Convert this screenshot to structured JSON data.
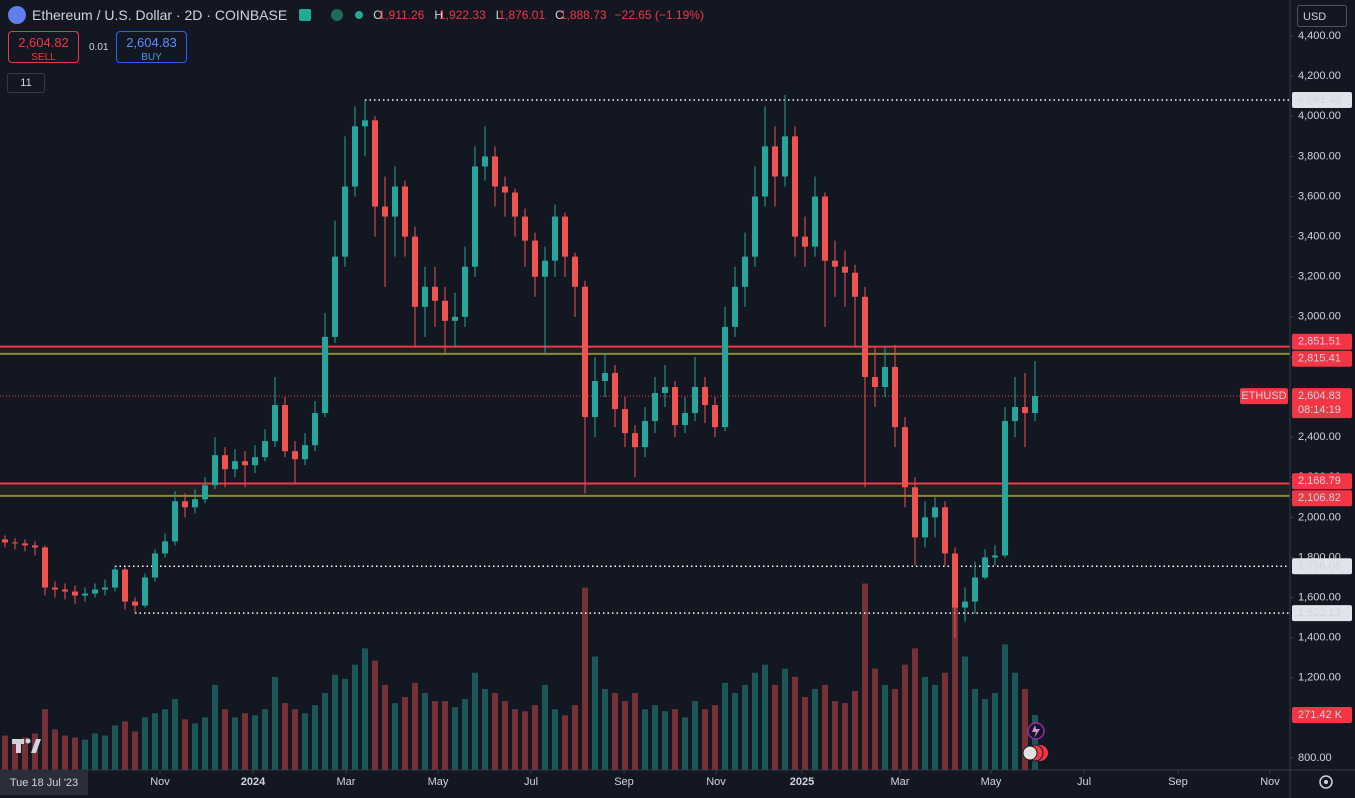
{
  "header": {
    "ohlc": [
      {
        "key": "O",
        "value": "1,911.26"
      },
      {
        "key": "H",
        "value": "1,922.33"
      },
      {
        "key": "L",
        "value": "1,876.01"
      },
      {
        "key": "C",
        "value": "1,888.73"
      }
    ],
    "change": "−22.65 (−1.19%)",
    "sell": {
      "price": "2,604.82",
      "label": "SELL"
    },
    "spread": "0.01",
    "buy": {
      "price": "2,604.83",
      "label": "BUY"
    },
    "indicators": "11",
    "currency": "USD",
    "cursor_date": "Tue 18 Jul '23"
  },
  "chart_data": {
    "type": "candlestick",
    "title": "Ethereum / U.S. Dollar · 2D · COINBASE",
    "up_color": "#26a69a",
    "down_color": "#ef5350",
    "grid": false,
    "xlim": [
      -0.5,
      128.5
    ],
    "xticks": [
      {
        "value": 15.5,
        "label": "Nov"
      },
      {
        "value": 24.8,
        "label": "2024"
      },
      {
        "value": 34.1,
        "label": "Mar"
      },
      {
        "value": 43.3,
        "label": "May"
      },
      {
        "value": 52.6,
        "label": "Jul"
      },
      {
        "value": 61.9,
        "label": "Sep"
      },
      {
        "value": 71.1,
        "label": "Nov"
      },
      {
        "value": 79.7,
        "label": "2025"
      },
      {
        "value": 89.5,
        "label": "Mar"
      },
      {
        "value": 98.6,
        "label": "May"
      },
      {
        "value": 107.9,
        "label": "Jul"
      },
      {
        "value": 117.3,
        "label": "Sep"
      },
      {
        "value": 126.5,
        "label": "Nov"
      }
    ],
    "ylim": [
      740,
      4580
    ],
    "yticks": [
      {
        "value": 800,
        "label": "800.00"
      },
      {
        "value": 1000,
        "label": "1,000.00"
      },
      {
        "value": 1200,
        "label": "1,200.00"
      },
      {
        "value": 1400,
        "label": "1,400.00"
      },
      {
        "value": 1600,
        "label": "1,600.00"
      },
      {
        "value": 1800,
        "label": "1,800.00"
      },
      {
        "value": 2000,
        "label": "2,000.00"
      },
      {
        "value": 2200,
        "label": "2,200.00"
      },
      {
        "value": 2400,
        "label": "2,400.00"
      },
      {
        "value": 2600,
        "label": "2,600.00"
      },
      {
        "value": 2800,
        "label": "2,800.00"
      },
      {
        "value": 3000,
        "label": "3,000.00"
      },
      {
        "value": 3200,
        "label": "3,200.00"
      },
      {
        "value": 3400,
        "label": "3,400.00"
      },
      {
        "value": 3600,
        "label": "3,600.00"
      },
      {
        "value": 3800,
        "label": "3,800.00"
      },
      {
        "value": 4000,
        "label": "4,000.00"
      },
      {
        "value": 4200,
        "label": "4,200.00"
      },
      {
        "value": 4400,
        "label": "4,400.00"
      }
    ],
    "open": [
      1890,
      1875,
      1870,
      1860,
      1850,
      1650,
      1640,
      1630,
      1610,
      1620,
      1640,
      1650,
      1740,
      1580,
      1560,
      1700,
      1820,
      1880,
      2080,
      2050,
      2090,
      2160,
      2310,
      2240,
      2280,
      2260,
      2300,
      2380,
      2560,
      2330,
      2290,
      2360,
      2520,
      2900,
      3300,
      3650,
      3950,
      3980,
      3550,
      3500,
      3650,
      3400,
      3050,
      3150,
      3080,
      2980,
      3000,
      3250,
      3750,
      3800,
      3650,
      3620,
      3500,
      3380,
      3200,
      3280,
      3500,
      3300,
      3150,
      2500,
      2680,
      2720,
      2540,
      2420,
      2350,
      2480,
      2620,
      2650,
      2460,
      2520,
      2650,
      2560,
      2450,
      2950,
      3150,
      3300,
      3600,
      3850,
      3700,
      3900,
      3400,
      3350,
      3600,
      3280,
      3250,
      3220,
      3100,
      2700,
      2650,
      2750,
      2450,
      2150,
      1900,
      2000,
      2050,
      1820,
      1550,
      1580,
      1700,
      1800,
      1810,
      2480,
      2550,
      2520
    ],
    "high": [
      1910,
      1895,
      1890,
      1880,
      1860,
      1680,
      1670,
      1660,
      1650,
      1670,
      1690,
      1756,
      1750,
      1600,
      1720,
      1840,
      1920,
      2130,
      2120,
      2140,
      2200,
      2400,
      2350,
      2340,
      2330,
      2360,
      2440,
      2700,
      2600,
      2380,
      2420,
      2580,
      3020,
      3480,
      3900,
      4050,
      4081.48,
      4000,
      3700,
      3750,
      3680,
      3450,
      3250,
      3250,
      3150,
      3120,
      3350,
      3850,
      3950,
      3850,
      3700,
      3640,
      3540,
      3420,
      3350,
      3560,
      3520,
      3320,
      3180,
      2800,
      2820,
      2760,
      2600,
      2460,
      2550,
      2700,
      2760,
      2680,
      2600,
      2800,
      2700,
      2600,
      3050,
      3250,
      3420,
      3750,
      4050,
      3950,
      4107,
      3950,
      3500,
      3700,
      3620,
      3380,
      3330,
      3260,
      3150,
      2850,
      2850,
      2860,
      2500,
      2200,
      2080,
      2100,
      2080,
      1850,
      1650,
      1780,
      1840,
      1860,
      2550,
      2700,
      2720,
      2780
    ],
    "low": [
      1850,
      1840,
      1830,
      1810,
      1610,
      1600,
      1590,
      1570,
      1580,
      1600,
      1610,
      1630,
      1540,
      1522,
      1550,
      1680,
      1800,
      1860,
      2000,
      2020,
      2070,
      2140,
      2150,
      2200,
      2150,
      2220,
      2280,
      2350,
      2300,
      2170,
      2260,
      2330,
      2500,
      2870,
      3250,
      3600,
      3800,
      3400,
      3150,
      3300,
      3300,
      2850,
      2900,
      2950,
      2820,
      2850,
      2950,
      3200,
      3680,
      3550,
      3500,
      3400,
      3250,
      3100,
      2820,
      3200,
      3200,
      3000,
      2120,
      2400,
      2600,
      2450,
      2350,
      2200,
      2300,
      2420,
      2550,
      2400,
      2420,
      2480,
      2470,
      2400,
      2430,
      2900,
      3050,
      3250,
      3550,
      3550,
      3650,
      3300,
      3250,
      3300,
      2950,
      3100,
      3050,
      2850,
      2150,
      2550,
      2600,
      2350,
      2050,
      1760,
      1850,
      1900,
      1760,
      1400,
      1480,
      1520,
      1690,
      1760,
      1800,
      2400,
      2350,
      2480
    ],
    "close": [
      1875,
      1870,
      1860,
      1850,
      1650,
      1640,
      1630,
      1610,
      1620,
      1640,
      1650,
      1740,
      1580,
      1560,
      1700,
      1820,
      1880,
      2080,
      2050,
      2090,
      2160,
      2310,
      2240,
      2280,
      2260,
      2300,
      2380,
      2560,
      2330,
      2290,
      2360,
      2520,
      2900,
      3300,
      3650,
      3950,
      3980,
      3550,
      3500,
      3650,
      3400,
      3050,
      3150,
      3080,
      2980,
      3000,
      3250,
      3750,
      3800,
      3650,
      3620,
      3500,
      3380,
      3200,
      3280,
      3500,
      3300,
      3150,
      2500,
      2680,
      2720,
      2540,
      2420,
      2350,
      2480,
      2620,
      2650,
      2460,
      2520,
      2650,
      2560,
      2450,
      2950,
      3150,
      3300,
      3600,
      3850,
      3700,
      3900,
      3400,
      3350,
      3600,
      3280,
      3250,
      3220,
      3100,
      2700,
      2650,
      2750,
      2450,
      2150,
      1900,
      2000,
      2050,
      1820,
      1550,
      1580,
      1700,
      1800,
      1810,
      2480,
      2550,
      2520,
      2605
    ],
    "volume_lim": [
      0,
      3800
    ],
    "volume": [
      170,
      150,
      160,
      180,
      300,
      200,
      170,
      160,
      150,
      180,
      170,
      220,
      240,
      190,
      260,
      280,
      300,
      350,
      250,
      230,
      260,
      420,
      300,
      260,
      280,
      270,
      300,
      460,
      330,
      300,
      280,
      320,
      380,
      470,
      450,
      520,
      600,
      540,
      420,
      330,
      360,
      430,
      380,
      340,
      340,
      310,
      350,
      480,
      400,
      380,
      340,
      300,
      290,
      320,
      420,
      300,
      270,
      320,
      900,
      560,
      400,
      380,
      340,
      380,
      300,
      320,
      290,
      300,
      260,
      340,
      300,
      320,
      430,
      380,
      420,
      480,
      520,
      420,
      500,
      460,
      360,
      400,
      420,
      340,
      330,
      390,
      920,
      500,
      420,
      400,
      520,
      600,
      460,
      420,
      480,
      940,
      560,
      400,
      350,
      380,
      620,
      480,
      400,
      271.42
    ],
    "volume_marker": {
      "value": 271.42,
      "label": "271.42 K"
    },
    "price_lines": [
      {
        "value": 4081.48,
        "label": "4,081.48",
        "from": 36
      },
      {
        "value": 1756.06,
        "label": "1,756.06",
        "from": 11
      },
      {
        "value": 1522.13,
        "label": "1,522.13",
        "from": 13
      }
    ],
    "zones": [
      {
        "high": 2851.51,
        "high_label": "2,851.51",
        "low": 2815.41,
        "low_label": "2,815.41"
      },
      {
        "high": 2168.79,
        "high_label": "2,168.79",
        "low": 2106.82,
        "low_label": "2,106.82"
      }
    ],
    "last_price": {
      "value": 2604.83,
      "label": "2,604.83",
      "symbol": "ETHUSD",
      "countdown": "08:14:19"
    }
  }
}
